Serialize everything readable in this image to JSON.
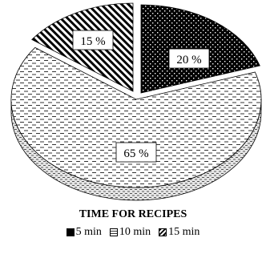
{
  "chart_data": {
    "type": "pie",
    "title": "TIME FOR RECIPES",
    "categories": [
      "5 min",
      "10 min",
      "15 min"
    ],
    "values": [
      20,
      65,
      15
    ],
    "data_labels": [
      "20 %",
      "65 %",
      "15 %"
    ],
    "legend_position": "bottom",
    "style": "3d-exploded-patterned"
  }
}
